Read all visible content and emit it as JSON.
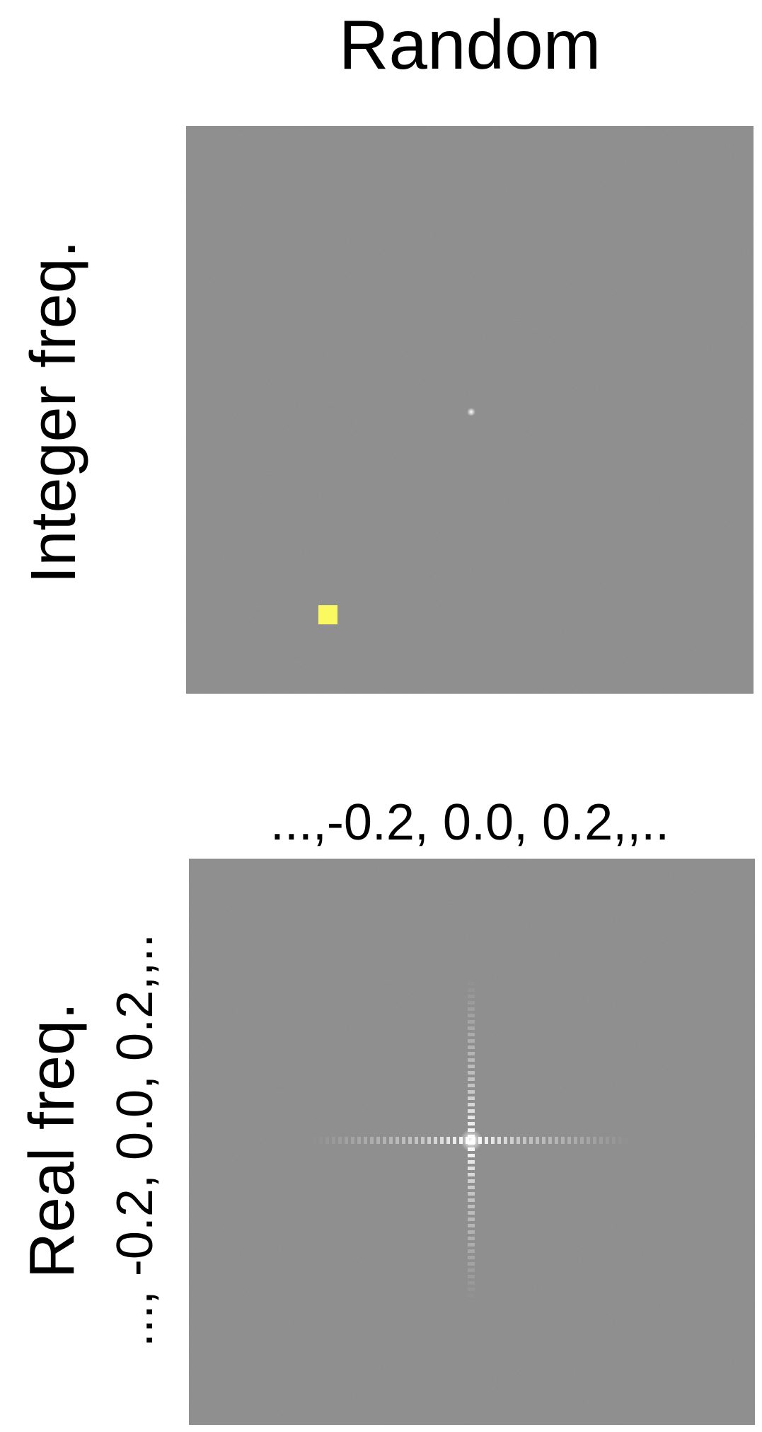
{
  "title": "Random",
  "panels": [
    {
      "label": "Integer freq."
    },
    {
      "label": "Real freq.",
      "x_axis_label": "...,-0.2, 0.0, 0.2,,..",
      "y_axis_label": "..., -0.2, 0.0, 0.2,,.."
    }
  ]
}
